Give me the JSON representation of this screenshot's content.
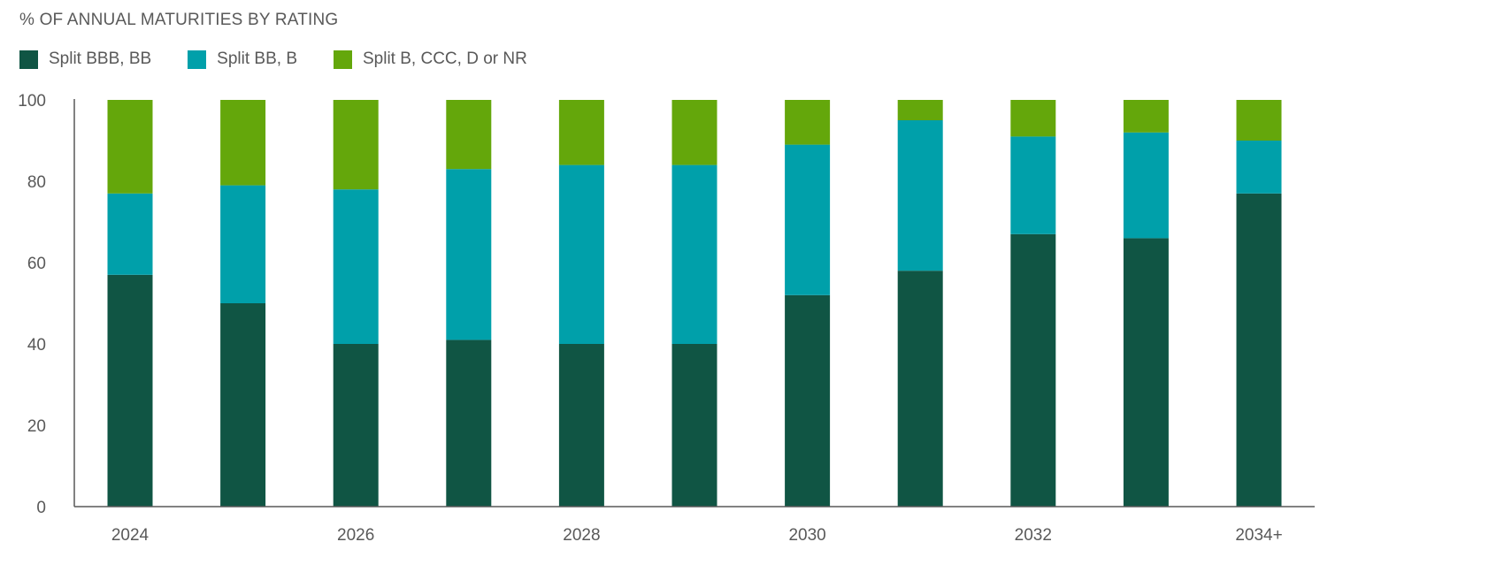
{
  "chart_data": {
    "type": "bar",
    "stacked": true,
    "title": "% OF ANNUAL MATURITIES BY RATING",
    "xlabel": "",
    "ylabel": "",
    "ylim": [
      0,
      100
    ],
    "y_ticks": [
      0,
      20,
      40,
      60,
      80,
      100
    ],
    "categories": [
      "2024",
      "2025",
      "2026",
      "2027",
      "2028",
      "2029",
      "2030",
      "2031",
      "2032",
      "2033",
      "2034+"
    ],
    "x_tick_labels": [
      "2024",
      "",
      "2026",
      "",
      "2028",
      "",
      "2030",
      "",
      "2032",
      "",
      "2034+"
    ],
    "legend_position": "top-left",
    "grid": false,
    "series": [
      {
        "name": "Split BBB, BB",
        "color": "#105544",
        "values": [
          57,
          50,
          40,
          41,
          40,
          40,
          52,
          58,
          67,
          66,
          77
        ]
      },
      {
        "name": "Split BB, B",
        "color": "#00A0AA",
        "values": [
          20,
          29,
          38,
          42,
          44,
          44,
          37,
          37,
          24,
          26,
          13
        ]
      },
      {
        "name": "Split B, CCC, D or NR",
        "color": "#64A70B",
        "values": [
          24,
          22,
          23,
          18,
          17,
          17,
          12,
          6,
          10,
          9,
          11
        ]
      }
    ]
  }
}
